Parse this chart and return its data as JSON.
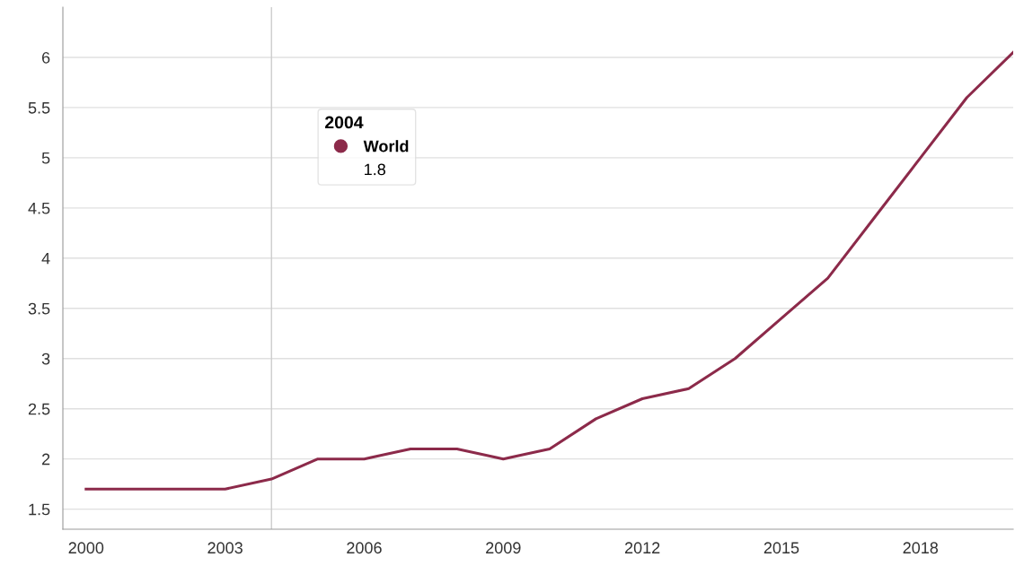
{
  "chart_data": {
    "type": "line",
    "x": [
      2000,
      2001,
      2002,
      2003,
      2004,
      2005,
      2006,
      2007,
      2008,
      2009,
      2010,
      2011,
      2012,
      2013,
      2014,
      2015,
      2016,
      2017,
      2018,
      2019,
      2020
    ],
    "series": [
      {
        "name": "World",
        "color": "#8c2a4a",
        "values": [
          1.7,
          1.7,
          1.7,
          1.7,
          1.8,
          2.0,
          2.0,
          2.1,
          2.1,
          2.0,
          2.1,
          2.4,
          2.6,
          2.7,
          3.0,
          3.4,
          3.8,
          4.4,
          5.0,
          5.6,
          6.05
        ]
      }
    ],
    "xlim": [
      1999.5,
      2020
    ],
    "xticks": [
      2000,
      2003,
      2006,
      2009,
      2012,
      2015,
      2018
    ],
    "ylim": [
      1.3,
      6.5
    ],
    "yticks": [
      1.5,
      2,
      2.5,
      3,
      3.5,
      4,
      4.5,
      5,
      5.5,
      6
    ],
    "ref_lines": [
      {
        "axis": "x",
        "value": 2004,
        "color": "#cccccc"
      }
    ],
    "legend": "top left",
    "legend_title": "2004",
    "annotations": [
      "1.8"
    ],
    "grid": "y",
    "marker": "none",
    "line_style": "solid"
  }
}
